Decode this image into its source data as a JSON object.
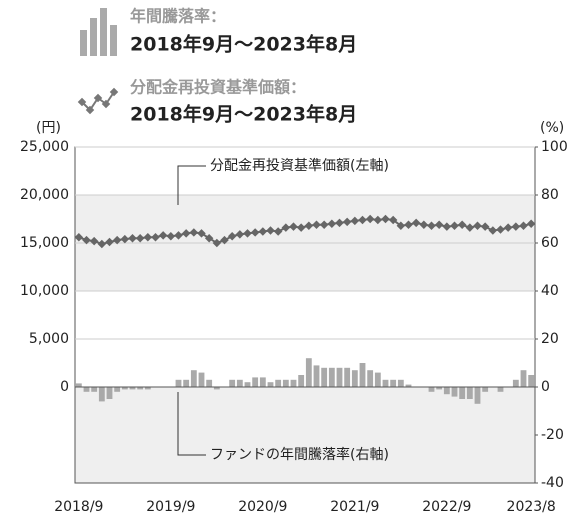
{
  "chart_data": {
    "type": "bar_line",
    "period": "2018年9月～2023年8月",
    "ylabel": "(円)",
    "y2label": "(%)",
    "annotations": [
      "分配金再投資基準価額(左軸)",
      "ファンドの年間騰落率(右軸)"
    ],
    "categories": [
      "2018/9",
      null,
      null,
      null,
      null,
      null,
      null,
      null,
      null,
      null,
      null,
      null,
      "2019/9",
      null,
      null,
      null,
      null,
      null,
      null,
      null,
      null,
      null,
      null,
      null,
      "2020/9",
      null,
      null,
      null,
      null,
      null,
      null,
      null,
      null,
      null,
      null,
      null,
      "2021/9",
      null,
      null,
      null,
      null,
      null,
      null,
      null,
      null,
      null,
      null,
      null,
      "2022/9",
      null,
      null,
      null,
      null,
      null,
      null,
      null,
      null,
      null,
      null,
      "2023/8"
    ],
    "series": [
      {
        "name": "年間騰落率：",
        "type": "bar",
        "axis": "y2",
        "color": "#a9a9a9",
        "values": [
          1.5,
          -2,
          -2,
          -6,
          -5,
          -2,
          -1,
          -1,
          -1,
          -1,
          0,
          0,
          0,
          3,
          3,
          7,
          6,
          3,
          -1,
          0,
          3,
          3,
          2,
          4,
          4,
          2,
          3,
          3,
          3,
          5,
          12,
          9,
          8,
          8,
          8,
          8,
          7,
          10,
          7,
          6,
          3,
          3,
          3,
          1,
          0,
          0,
          -2,
          -1,
          -3,
          -4,
          -5,
          -5,
          -7,
          -2,
          0,
          -2,
          0,
          3,
          7,
          5
        ]
      },
      {
        "name": "分配金再投資基準価額：",
        "type": "line",
        "axis": "y",
        "color": "#666666",
        "values": [
          15600,
          15300,
          15200,
          14900,
          15100,
          15300,
          15400,
          15500,
          15500,
          15600,
          15600,
          15800,
          15700,
          15800,
          16000,
          16100,
          16000,
          15500,
          15000,
          15300,
          15700,
          15900,
          16000,
          16100,
          16200,
          16300,
          16200,
          16600,
          16700,
          16600,
          16800,
          16900,
          16900,
          17000,
          17100,
          17200,
          17300,
          17400,
          17500,
          17400,
          17500,
          17400,
          16800,
          16900,
          17100,
          16900,
          16800,
          16900,
          16700,
          16800,
          16900,
          16600,
          16800,
          16700,
          16300,
          16400,
          16600,
          16700,
          16800,
          17000
        ]
      }
    ],
    "ylim": [
      -10000,
      25000
    ],
    "yticks": [
      0,
      {
        "value": 5000,
        "label": "5,000"
      },
      {
        "value": 10000,
        "label": "10,000"
      },
      {
        "value": 15000,
        "label": "15,000"
      },
      {
        "value": 20000,
        "label": "20,000"
      },
      {
        "value": 25000,
        "label": "25,000"
      }
    ],
    "y2lim": [
      -40,
      100
    ],
    "y2ticks": [
      -40,
      -20,
      0,
      20,
      40,
      60,
      80,
      100
    ],
    "grid": true
  }
}
